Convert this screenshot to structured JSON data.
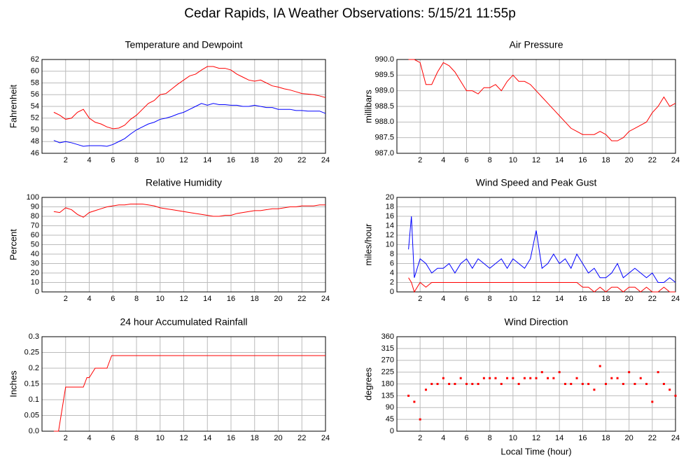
{
  "title": "Cedar Rapids, IA Weather Observations: 5/15/21 11:55p",
  "chart_data": [
    {
      "type": "line",
      "title": "Temperature and Dewpoint",
      "ylabel": "Fahrenheit",
      "xlim": [
        0,
        24
      ],
      "xticks": [
        2,
        4,
        6,
        8,
        10,
        12,
        14,
        16,
        18,
        20,
        22,
        24
      ],
      "ylim": [
        46,
        62
      ],
      "yticks": [
        46,
        48,
        50,
        52,
        54,
        56,
        58,
        60,
        62
      ],
      "grid": true,
      "x": [
        1,
        1.5,
        2,
        2.5,
        3,
        3.5,
        4,
        4.5,
        5,
        5.5,
        6,
        6.5,
        7,
        7.5,
        8,
        8.5,
        9,
        9.5,
        10,
        10.5,
        11,
        11.5,
        12,
        12.5,
        13,
        13.5,
        14,
        14.5,
        15,
        15.5,
        16,
        16.5,
        17,
        17.5,
        18,
        18.5,
        19,
        19.5,
        20,
        20.5,
        21,
        21.5,
        22,
        22.5,
        23,
        23.5,
        24
      ],
      "series": [
        {
          "color": "#ff0000",
          "values": [
            53,
            52.5,
            51.8,
            52,
            53,
            53.5,
            52,
            51.3,
            51,
            50.5,
            50.2,
            50.3,
            50.8,
            51.8,
            52.5,
            53.5,
            54.5,
            55,
            56,
            56.2,
            57,
            57.8,
            58.5,
            59.2,
            59.5,
            60.2,
            60.8,
            60.8,
            60.5,
            60.5,
            60.2,
            59.5,
            59,
            58.5,
            58.3,
            58.5,
            58,
            57.5,
            57.3,
            57,
            56.8,
            56.5,
            56.2,
            56.1,
            56,
            55.8,
            55.5
          ]
        },
        {
          "color": "#0000ff",
          "values": [
            48.2,
            47.8,
            48,
            47.8,
            47.5,
            47.2,
            47.3,
            47.3,
            47.3,
            47.2,
            47.5,
            48,
            48.5,
            49.3,
            50,
            50.5,
            51,
            51.3,
            51.8,
            52,
            52.3,
            52.7,
            53,
            53.5,
            54,
            54.5,
            54.2,
            54.5,
            54.3,
            54.3,
            54.2,
            54.2,
            54,
            54,
            54.2,
            54,
            53.8,
            53.8,
            53.5,
            53.5,
            53.5,
            53.3,
            53.3,
            53.2,
            53.2,
            53.2,
            52.8
          ]
        }
      ]
    },
    {
      "type": "line",
      "title": "Air Pressure",
      "ylabel": "millibars",
      "xlim": [
        0,
        24
      ],
      "xticks": [
        2,
        4,
        6,
        8,
        10,
        12,
        14,
        16,
        18,
        20,
        22,
        24
      ],
      "ylim": [
        987,
        990
      ],
      "yticks": [
        {
          "value": 987,
          "label": "987.0"
        },
        987.5,
        {
          "value": 988,
          "label": "988.0"
        },
        988.5,
        {
          "value": 989,
          "label": "989.0"
        },
        989.5,
        {
          "value": 990,
          "label": "990.0"
        }
      ],
      "grid": true,
      "x": [
        1,
        1.5,
        2,
        2.5,
        3,
        3.5,
        4,
        4.5,
        5,
        5.5,
        6,
        6.5,
        7,
        7.5,
        8,
        8.5,
        9,
        9.5,
        10,
        10.5,
        11,
        11.5,
        12,
        12.5,
        13,
        13.5,
        14,
        14.5,
        15,
        15.5,
        16,
        16.5,
        17,
        17.5,
        18,
        18.5,
        19,
        19.5,
        20,
        20.5,
        21,
        21.5,
        22,
        22.5,
        23,
        23.5,
        24
      ],
      "series": [
        {
          "color": "#ff0000",
          "values": [
            990,
            990,
            989.9,
            989.2,
            989.2,
            989.6,
            989.9,
            989.8,
            989.6,
            989.3,
            989.0,
            989.0,
            988.9,
            989.1,
            989.1,
            989.2,
            989.0,
            989.3,
            989.5,
            989.3,
            989.3,
            989.2,
            989.0,
            988.8,
            988.6,
            988.4,
            988.2,
            988.0,
            987.8,
            987.7,
            987.6,
            987.6,
            987.6,
            987.7,
            987.6,
            987.4,
            987.4,
            987.5,
            987.7,
            987.8,
            987.9,
            988.0,
            988.3,
            988.5,
            988.8,
            988.5,
            988.6
          ]
        }
      ]
    },
    {
      "type": "line",
      "title": "Relative Humidity",
      "ylabel": "Percent",
      "xlim": [
        0,
        24
      ],
      "xticks": [
        2,
        4,
        6,
        8,
        10,
        12,
        14,
        16,
        18,
        20,
        22,
        24
      ],
      "ylim": [
        0,
        100
      ],
      "yticks": [
        0,
        10,
        20,
        30,
        40,
        50,
        60,
        70,
        80,
        90,
        100
      ],
      "grid": true,
      "x": [
        1,
        1.5,
        2,
        2.5,
        3,
        3.5,
        4,
        4.5,
        5,
        5.5,
        6,
        6.5,
        7,
        7.5,
        8,
        8.5,
        9,
        9.5,
        10,
        10.5,
        11,
        11.5,
        12,
        12.5,
        13,
        13.5,
        14,
        14.5,
        15,
        15.5,
        16,
        16.5,
        17,
        17.5,
        18,
        18.5,
        19,
        19.5,
        20,
        20.5,
        21,
        21.5,
        22,
        22.5,
        23,
        23.5,
        24
      ],
      "series": [
        {
          "color": "#ff0000",
          "values": [
            85,
            84,
            89,
            87,
            82,
            79,
            84,
            86,
            88,
            90,
            91,
            92,
            92,
            93,
            93,
            93,
            92,
            91,
            89,
            88,
            87,
            86,
            85,
            84,
            83,
            82,
            81,
            80,
            80,
            81,
            81,
            83,
            84,
            85,
            86,
            86,
            87,
            88,
            88,
            89,
            90,
            90,
            91,
            91,
            91,
            92,
            92
          ]
        }
      ]
    },
    {
      "type": "line",
      "title": "Wind Speed and Peak Gust",
      "ylabel": "miles/hour",
      "xlim": [
        0,
        24
      ],
      "xticks": [
        2,
        4,
        6,
        8,
        10,
        12,
        14,
        16,
        18,
        20,
        22,
        24
      ],
      "ylim": [
        0,
        20
      ],
      "yticks": [
        0,
        2,
        4,
        6,
        8,
        10,
        12,
        14,
        16,
        18,
        20
      ],
      "grid": true,
      "x": [
        1,
        1.25,
        1.5,
        2,
        2.5,
        3,
        3.5,
        4,
        4.5,
        5,
        5.5,
        6,
        6.5,
        7,
        7.5,
        8,
        8.5,
        9,
        9.5,
        10,
        10.5,
        11,
        11.5,
        12,
        12.5,
        13,
        13.5,
        14,
        14.5,
        15,
        15.5,
        16,
        16.5,
        17,
        17.5,
        18,
        18.5,
        19,
        19.5,
        20,
        20.5,
        21,
        21.5,
        22,
        22.5,
        23,
        23.5,
        24
      ],
      "series": [
        {
          "color": "#0000ff",
          "values": [
            9,
            16,
            3,
            7,
            6,
            4,
            5,
            5,
            6,
            4,
            6,
            7,
            5,
            7,
            6,
            5,
            6,
            7,
            5,
            7,
            6,
            5,
            7,
            13,
            5,
            6,
            8,
            6,
            7,
            5,
            8,
            6,
            4,
            5,
            3,
            3,
            4,
            6,
            3,
            4,
            5,
            4,
            3,
            4,
            2,
            2,
            3,
            2
          ]
        },
        {
          "color": "#ff0000",
          "values": [
            3,
            2,
            0,
            2,
            1,
            2,
            2,
            2,
            2,
            2,
            2,
            2,
            2,
            2,
            2,
            2,
            2,
            2,
            2,
            2,
            2,
            2,
            2,
            2,
            2,
            2,
            2,
            2,
            2,
            2,
            2,
            1,
            1,
            0,
            1,
            0,
            1,
            1,
            0,
            1,
            1,
            0,
            1,
            0,
            0,
            1,
            0,
            0
          ]
        }
      ]
    },
    {
      "type": "line",
      "title": "24 hour Accumulated Rainfall",
      "ylabel": "Inches",
      "xlim": [
        0,
        24
      ],
      "xticks": [
        2,
        4,
        6,
        8,
        10,
        12,
        14,
        16,
        18,
        20,
        22,
        24
      ],
      "ylim": [
        0,
        0.3
      ],
      "yticks": [
        {
          "value": 0,
          "label": "0.0"
        },
        0.05,
        0.1,
        0.15,
        0.2,
        0.25,
        0.3
      ],
      "grid": true,
      "x": [
        1,
        1.4,
        1.7,
        2,
        2.5,
        3,
        3.5,
        3.8,
        4,
        4.5,
        5,
        5.5,
        5.7,
        5.9,
        24
      ],
      "series": [
        {
          "color": "#ff0000",
          "values": [
            0,
            0,
            0.07,
            0.14,
            0.14,
            0.14,
            0.14,
            0.17,
            0.17,
            0.2,
            0.2,
            0.2,
            0.22,
            0.24,
            0.24
          ]
        }
      ]
    },
    {
      "type": "scatter",
      "title": "Wind Direction",
      "ylabel": "degrees",
      "xlabel": "Local Time (hour)",
      "xlim": [
        0,
        24
      ],
      "xticks": [
        2,
        4,
        6,
        8,
        10,
        12,
        14,
        16,
        18,
        20,
        22,
        24
      ],
      "ylim": [
        0,
        360
      ],
      "yticks": [
        0,
        45,
        90,
        135,
        180,
        225,
        270,
        315,
        360
      ],
      "grid": true,
      "x": [
        1,
        1.5,
        2,
        2.5,
        3,
        3.5,
        4,
        4.5,
        5,
        5.5,
        6,
        6.5,
        7,
        7.5,
        8,
        8.5,
        9,
        9.5,
        10,
        10.5,
        11,
        11.5,
        12,
        12.5,
        13,
        13.5,
        14,
        14.5,
        15,
        15.5,
        16,
        16.5,
        17,
        17.5,
        18,
        18.5,
        19,
        19.5,
        20,
        20.5,
        21,
        21.5,
        22,
        22.5,
        23,
        23.5,
        24
      ],
      "series": [
        {
          "color": "#ff0000",
          "values": [
            135,
            112,
            45,
            158,
            180,
            180,
            202,
            180,
            180,
            202,
            180,
            180,
            180,
            202,
            202,
            202,
            180,
            202,
            202,
            180,
            202,
            202,
            202,
            225,
            202,
            202,
            225,
            180,
            180,
            202,
            180,
            180,
            158,
            248,
            180,
            202,
            202,
            180,
            225,
            180,
            202,
            180,
            112,
            225,
            180,
            158,
            135
          ]
        }
      ]
    }
  ]
}
